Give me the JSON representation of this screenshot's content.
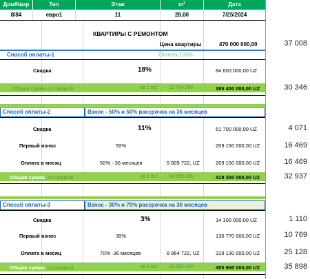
{
  "header": {
    "cols": [
      {
        "label": "Дом/Квар"
      },
      {
        "label": "Тип"
      },
      {
        "label": "Этаж"
      },
      {
        "label": "m",
        "sup": "2"
      },
      {
        "label": "Дата"
      }
    ],
    "values": [
      "8/84",
      "евро1",
      "11",
      "28,00",
      "7/25/2024"
    ]
  },
  "title": "КВАРТИРЫ С РЕМОНТОМ",
  "price": {
    "label": "Цена квартиры",
    "value": "470 000 000,00"
  },
  "side_top": "37 008",
  "section1": {
    "label": "Способ оплаты-1",
    "note": "Оплата-100%",
    "discount_label": "Скидка",
    "discount_pct": "18%",
    "discount_value": "84 600 000,00 UZ",
    "total_label": "Общая сумма со скидкой",
    "per_m2_label": "за 1 m2",
    "per_m2_value": "13 764 286",
    "total_value": "385 400 000,00 UZ",
    "side_total": "30 346"
  },
  "section2": {
    "label": "Способ оплаты-2",
    "desc": "Взнос - 50% и 50% рассрочка на 36 месяцев",
    "discount_label": "Скидка",
    "discount_pct": "11%",
    "discount_value": "51 700 000,00 UZ",
    "side_discount": "4 071",
    "first_label": "Первый взнос",
    "first_pct": "50%",
    "first_value": "209 150 000,00 UZ",
    "side_first": "16 469",
    "monthly_label": "Оплата в месяц",
    "monthly_terms": "50% - 36 месяцев",
    "monthly_amount": "5 809 722, UZ",
    "monthly_value": "209 150 000,00 UZ",
    "side_monthly": "16 469",
    "total_label_a": "Общая сумма",
    "total_label_b": "со скидкой",
    "per_m2_label": "за 1 m2",
    "per_m2_value": "14 939 286",
    "total_value": "418 300 000,00 UZ",
    "side_total": "32 937"
  },
  "section3": {
    "label": "Способ оплаты-3",
    "desc": "Взнос - 30% и 70% рассрочка на 36 месяцев",
    "discount_label": "Скидка",
    "discount_pct": "3%",
    "discount_value": "14 100 000,00 UZ",
    "side_discount": "1 110",
    "first_label": "Первый взнос",
    "first_pct": "30%",
    "first_value": "136 770 000,00 UZ",
    "side_first": "10 769",
    "monthly_label": "Оплата в месяц",
    "monthly_terms": "70% -36 месяцев",
    "monthly_amount": "8 864 722, UZ",
    "monthly_value": "319 130 000,00 UZ",
    "side_monthly": "25 128",
    "total_label_a": "Общая сумма",
    "total_label_b": "со скидкой",
    "per_m2_label": "за 1 m2",
    "per_m2_value": "16 282 143",
    "total_value": "455 900 000,00 UZ",
    "side_total": "35 898"
  },
  "colors": {
    "header_green": "#00a65a",
    "band_green": "#92d050",
    "section_blue": "#1f5fb4"
  }
}
